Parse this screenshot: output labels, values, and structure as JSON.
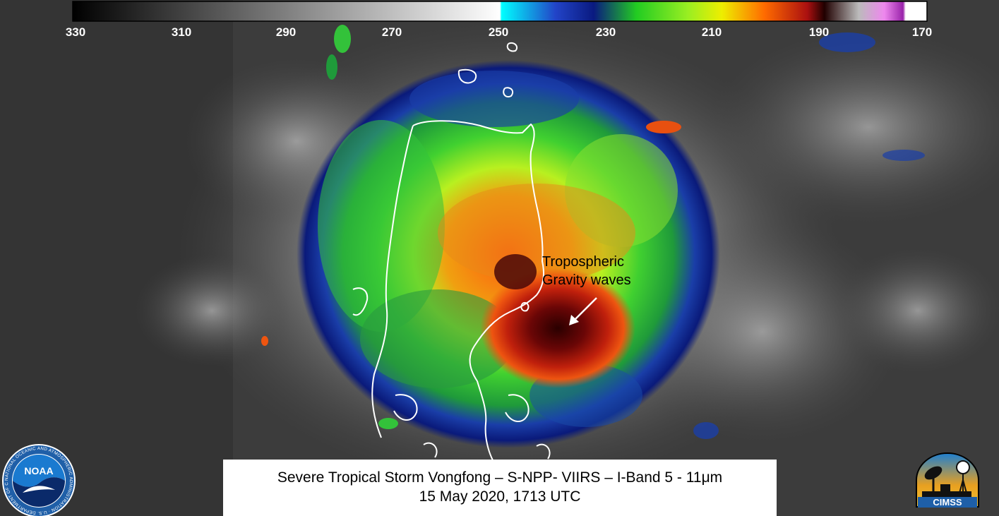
{
  "colorbar": {
    "ticks": [
      "330",
      "310",
      "290",
      "270",
      "250",
      "230",
      "210",
      "190",
      "170"
    ]
  },
  "annotation": {
    "line1": "Tropospheric",
    "line2": "Gravity waves"
  },
  "caption": {
    "line1": "Severe Tropical Storm Vongfong – S-NPP- VIIRS – I-Band 5 - 11μm",
    "line2": "15 May 2020, 1713 UTC"
  },
  "logos": {
    "noaa_text": "NOAA",
    "noaa_ring": "NATIONAL OCEANIC AND ATMOSPHERIC ADMINISTRATION · U.S. DEPARTMENT OF COMMERCE",
    "cimss_text": "CIMSS"
  },
  "colors": {
    "background_gray": "#3a3a3a",
    "cold_top_red": "#c81e0e",
    "coast_outline": "#ffffff"
  }
}
